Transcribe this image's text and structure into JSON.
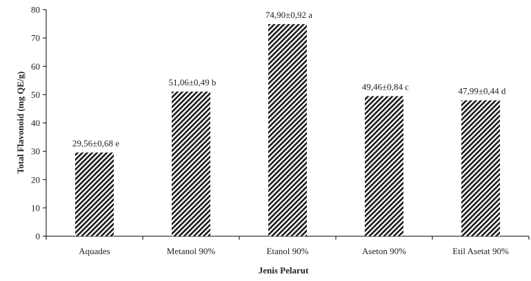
{
  "chart_data": {
    "type": "bar",
    "categories": [
      "Aquades",
      "Metanol 90%",
      "Etanol 90%",
      "Aseton 90%",
      "Etil Asetat 90%"
    ],
    "values": [
      29.56,
      51.06,
      74.9,
      49.46,
      47.99
    ],
    "data_labels": [
      "29,56±0,68  e",
      "51,06±0,49 b",
      "74,90±0,92  a",
      "49,46±0,84 c",
      "47,99±0,44 d"
    ],
    "xlabel": "Jenis Pelarut",
    "ylabel": "Total Flavonoid (mg QE/g)",
    "ylim": [
      0,
      80
    ],
    "yticks": [
      "0",
      "10",
      "20",
      "30",
      "40",
      "50",
      "60",
      "70",
      "80"
    ],
    "grid": false,
    "legend": "none",
    "bar_pattern": "diagonal-hatch",
    "colors": {
      "bar_fg": "#1a1a1a",
      "bar_bg": "#ffffff",
      "axis": "#000000"
    }
  }
}
